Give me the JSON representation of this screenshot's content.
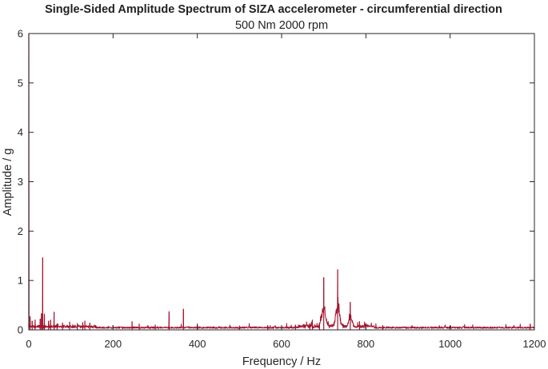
{
  "chart_data": {
    "type": "line",
    "title": "Single-Sided Amplitude Spectrum of SIZA accelerometer - circumferential direction",
    "subtitle": "500 Nm 2000 rpm",
    "xlabel": "Frequency / Hz",
    "ylabel": "Amplitude / g",
    "xlim": [
      0,
      1200
    ],
    "ylim": [
      0,
      6
    ],
    "xticks": [
      0,
      200,
      400,
      600,
      800,
      1000,
      1200
    ],
    "yticks": [
      0,
      1,
      2,
      3,
      4,
      5,
      6
    ],
    "grid": false,
    "line_color": "#a2142f",
    "peaks": [
      {
        "x": 0,
        "y": 6.0
      },
      {
        "x": 3,
        "y": 0.27
      },
      {
        "x": 8,
        "y": 0.18
      },
      {
        "x": 15,
        "y": 0.2
      },
      {
        "x": 27,
        "y": 0.22
      },
      {
        "x": 30,
        "y": 0.33
      },
      {
        "x": 33,
        "y": 1.46
      },
      {
        "x": 37,
        "y": 0.32
      },
      {
        "x": 47,
        "y": 0.18
      },
      {
        "x": 52,
        "y": 0.2
      },
      {
        "x": 60,
        "y": 0.36
      },
      {
        "x": 67,
        "y": 0.12
      },
      {
        "x": 80,
        "y": 0.14
      },
      {
        "x": 97,
        "y": 0.16
      },
      {
        "x": 115,
        "y": 0.13
      },
      {
        "x": 128,
        "y": 0.15
      },
      {
        "x": 133,
        "y": 0.18
      },
      {
        "x": 145,
        "y": 0.14
      },
      {
        "x": 245,
        "y": 0.17
      },
      {
        "x": 262,
        "y": 0.12
      },
      {
        "x": 300,
        "y": 0.1
      },
      {
        "x": 333,
        "y": 0.37
      },
      {
        "x": 367,
        "y": 0.42
      },
      {
        "x": 400,
        "y": 0.12
      },
      {
        "x": 500,
        "y": 0.08
      },
      {
        "x": 567,
        "y": 0.09
      },
      {
        "x": 633,
        "y": 0.1
      },
      {
        "x": 667,
        "y": 0.12
      },
      {
        "x": 673,
        "y": 0.2
      },
      {
        "x": 690,
        "y": 0.14
      },
      {
        "x": 700,
        "y": 1.06
      },
      {
        "x": 733,
        "y": 1.22
      },
      {
        "x": 763,
        "y": 0.56
      },
      {
        "x": 785,
        "y": 0.17
      },
      {
        "x": 800,
        "y": 0.13
      },
      {
        "x": 840,
        "y": 0.09
      },
      {
        "x": 1000,
        "y": 0.08
      },
      {
        "x": 1190,
        "y": 0.12
      }
    ]
  }
}
